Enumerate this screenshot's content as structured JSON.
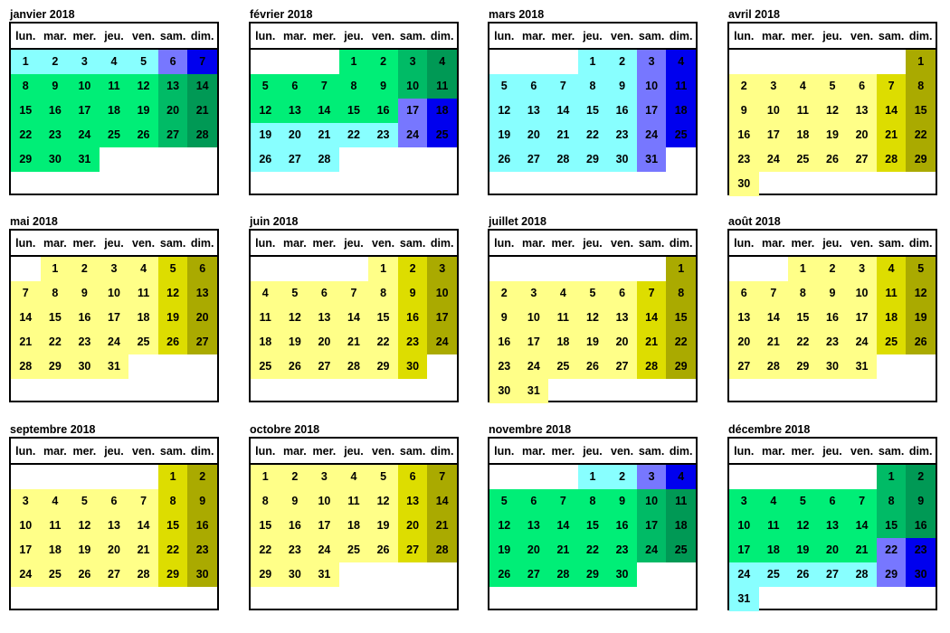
{
  "weekdays": [
    "lun.",
    "mar.",
    "mer.",
    "jeu.",
    "ven.",
    "sam.",
    "dim."
  ],
  "palette": {
    "y": "#ffff88",
    "ys": "#dddd00",
    "yd": "#aaaa00",
    "g": "#00ee77",
    "gs": "#00bb66",
    "gd": "#009955",
    "c": "#88ffff",
    "cs": "#7777ff",
    "cd": "#0000ee"
  },
  "months": [
    {
      "title": "janvier 2018",
      "start": 0,
      "days": 31,
      "scheme": [
        [
          "c",
          1,
          7
        ],
        [
          "g",
          8,
          31
        ]
      ]
    },
    {
      "title": "février 2018",
      "start": 3,
      "days": 28,
      "scheme": [
        [
          "g",
          1,
          16
        ],
        [
          "c",
          17,
          28
        ]
      ]
    },
    {
      "title": "mars 2018",
      "start": 3,
      "days": 31,
      "scheme": [
        [
          "c",
          1,
          31
        ]
      ]
    },
    {
      "title": "avril 2018",
      "start": 6,
      "days": 30,
      "scheme": [
        [
          "y",
          1,
          30
        ]
      ]
    },
    {
      "title": "mai 2018",
      "start": 1,
      "days": 31,
      "scheme": [
        [
          "y",
          1,
          31
        ]
      ]
    },
    {
      "title": "juin 2018",
      "start": 4,
      "days": 30,
      "scheme": [
        [
          "y",
          1,
          30
        ]
      ]
    },
    {
      "title": "juillet 2018",
      "start": 6,
      "days": 31,
      "scheme": [
        [
          "y",
          1,
          31
        ]
      ]
    },
    {
      "title": "août 2018",
      "start": 2,
      "days": 31,
      "scheme": [
        [
          "y",
          1,
          31
        ]
      ]
    },
    {
      "title": "septembre 2018",
      "start": 5,
      "days": 30,
      "scheme": [
        [
          "y",
          1,
          30
        ]
      ]
    },
    {
      "title": "octobre 2018",
      "start": 0,
      "days": 31,
      "scheme": [
        [
          "y",
          1,
          31
        ]
      ]
    },
    {
      "title": "novembre 2018",
      "start": 3,
      "days": 30,
      "scheme": [
        [
          "c",
          1,
          4
        ],
        [
          "g",
          5,
          30
        ]
      ]
    },
    {
      "title": "décembre 2018",
      "start": 5,
      "days": 31,
      "scheme": [
        [
          "g",
          1,
          21
        ],
        [
          "c",
          22,
          31
        ]
      ]
    }
  ]
}
